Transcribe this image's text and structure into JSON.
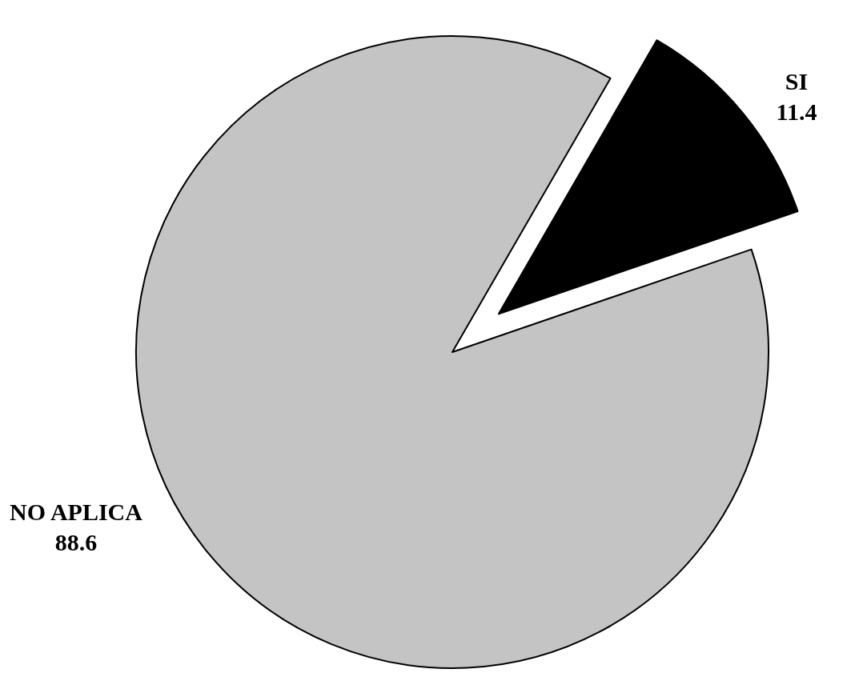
{
  "chart_data": {
    "type": "pie",
    "categories": [
      "SI",
      "NO APLICA"
    ],
    "values": [
      11.4,
      88.6
    ],
    "colors": [
      "#000000",
      "#c4c4c4"
    ],
    "data_labels": true
  }
}
